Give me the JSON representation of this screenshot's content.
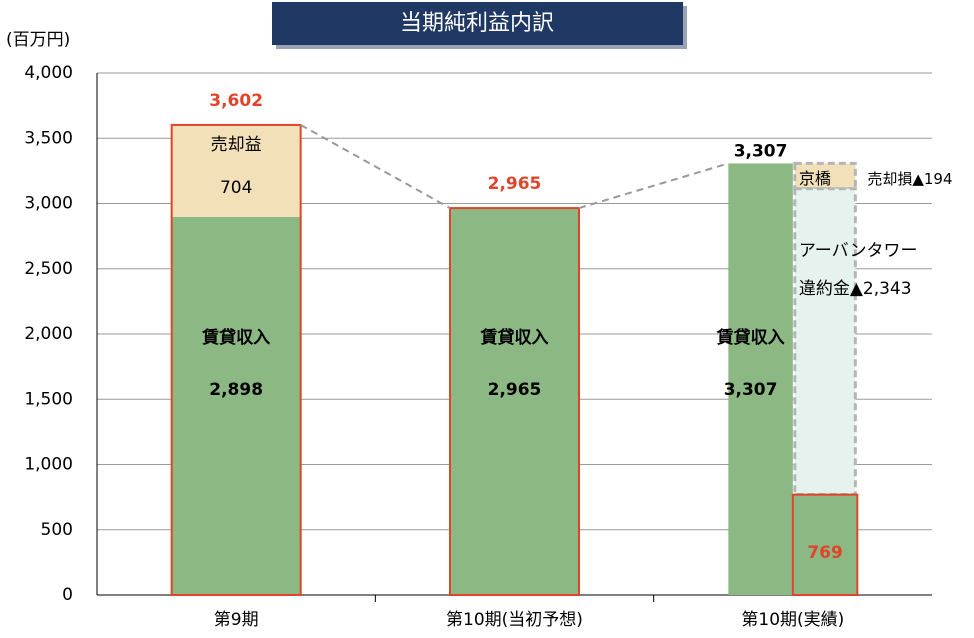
{
  "chart_data": {
    "type": "stacked_bar",
    "title": "当期純利益内訳",
    "unit_label": "(百万円)",
    "categories": [
      "第9期",
      "第10期(当初予想)",
      "第10期(実績)"
    ],
    "series": [
      {
        "name": "賃貸収入",
        "color": "#8cb883",
        "values": [
          2898,
          2965,
          3307
        ],
        "value_labels": [
          "2,898",
          "2,965",
          "3,307"
        ]
      },
      {
        "name": "売却益",
        "color": "#f2e0b8",
        "values": [
          704,
          null,
          null
        ],
        "value_labels": [
          "704",
          null,
          null
        ]
      }
    ],
    "totals": {
      "values": [
        3602,
        2965,
        3307
      ],
      "value_labels": [
        "3,602",
        "2,965",
        "3,307"
      ],
      "colors": [
        "#e0452c",
        "#e0452c",
        "#000000"
      ]
    },
    "losses": [
      {
        "name": "京橋",
        "label": "売却損▲194",
        "value": 194,
        "color": "#f2e0b8"
      },
      {
        "name": "アーバンタワー",
        "label": "違約金▲2,343",
        "value": 2343,
        "color": "#e6f2ee"
      }
    ],
    "result": {
      "value": 769,
      "value_label": "769",
      "color": "#8cb883",
      "label_color": "#e0452c"
    },
    "ylim": [
      0,
      4000
    ],
    "yticks": [
      0,
      500,
      {
        "value": 1000,
        "label": "1,000"
      },
      {
        "value": 1500,
        "label": "1,500"
      },
      {
        "value": 2000,
        "label": "2,000"
      },
      {
        "value": 2500,
        "label": "2,500"
      },
      {
        "value": 3000,
        "label": "3,000"
      },
      {
        "value": 3500,
        "label": "3,500"
      },
      {
        "value": 4000,
        "label": "4,000"
      }
    ],
    "grid": true
  }
}
